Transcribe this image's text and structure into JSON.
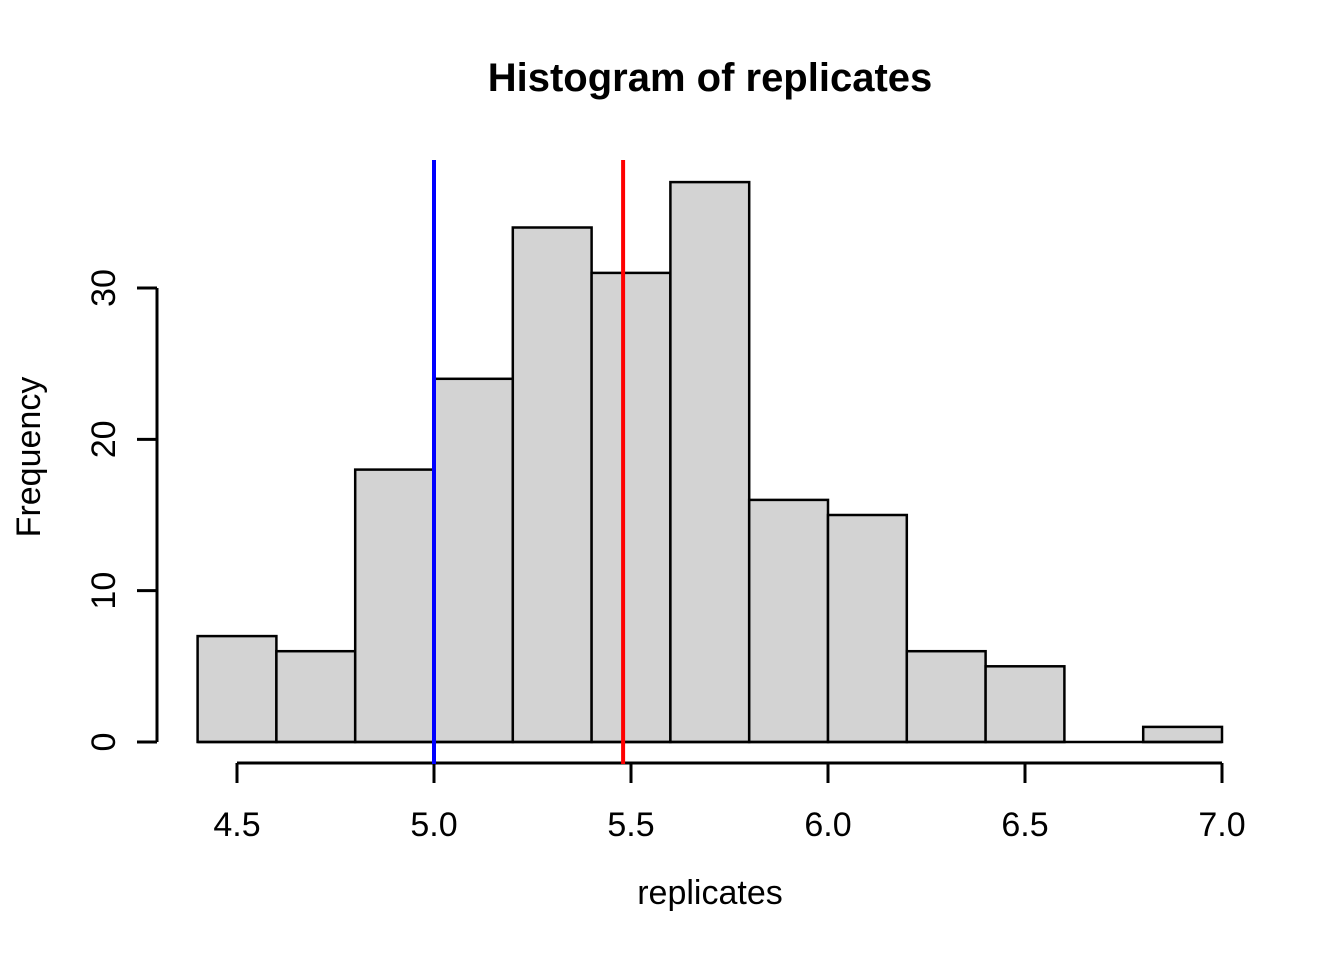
{
  "title": "Histogram of replicates",
  "xlabel": "replicates",
  "ylabel": "Frequency",
  "chart_data": {
    "type": "bar",
    "subtype": "histogram",
    "title": "Histogram of replicates",
    "xlabel": "replicates",
    "ylabel": "Frequency",
    "bin_breaks": [
      4.4,
      4.6,
      4.8,
      5.0,
      5.2,
      5.4,
      5.6,
      5.8,
      6.0,
      6.2,
      6.4,
      6.6,
      6.8,
      7.0
    ],
    "counts": [
      7,
      6,
      18,
      24,
      34,
      31,
      37,
      16,
      15,
      6,
      5,
      0,
      1
    ],
    "total_count": 200,
    "xlim": [
      4.4,
      7.0
    ],
    "ylim": [
      0,
      37
    ],
    "x_ticks": [
      4.5,
      5.0,
      5.5,
      6.0,
      6.5,
      7.0
    ],
    "x_tick_labels": [
      "4.5",
      "5.0",
      "5.5",
      "6.0",
      "6.5",
      "7.0"
    ],
    "y_ticks": [
      0,
      10,
      20,
      30
    ],
    "y_tick_labels": [
      "0",
      "10",
      "20",
      "30"
    ],
    "grid": false,
    "legend": null,
    "colors": {
      "bar_fill": "#d3d3d3",
      "bar_border": "#000000",
      "axis": "#000000",
      "text": "#000000"
    },
    "vlines": [
      {
        "name": "blue-reference-line",
        "x": 5.0,
        "color": "#0000ff"
      },
      {
        "name": "red-reference-line",
        "x": 5.48,
        "color": "#ff0000"
      }
    ]
  }
}
